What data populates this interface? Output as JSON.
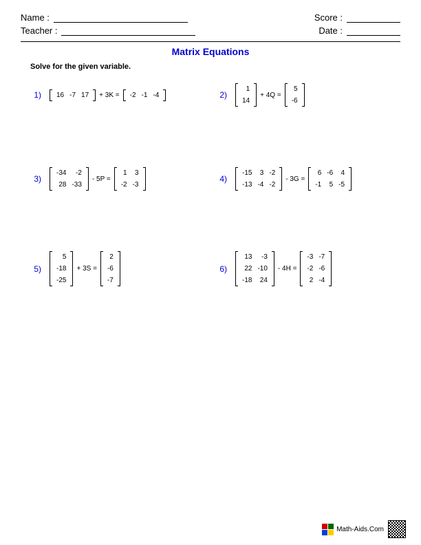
{
  "header": {
    "name_label": "Name :",
    "teacher_label": "Teacher :",
    "score_label": "Score :",
    "date_label": "Date :"
  },
  "title": "Matrix Equations",
  "instruction": "Solve for the given variable.",
  "problems": [
    {
      "num": "1)",
      "left": [
        [
          "16",
          "-7",
          "17"
        ]
      ],
      "op": "+",
      "coef": "3K",
      "eq": "=",
      "right": [
        [
          "-2",
          "-1",
          "-4"
        ]
      ]
    },
    {
      "num": "2)",
      "left": [
        [
          "1"
        ],
        [
          "14"
        ]
      ],
      "op": "+",
      "coef": "4Q",
      "eq": "=",
      "right": [
        [
          "5"
        ],
        [
          "-6"
        ]
      ]
    },
    {
      "num": "3)",
      "left": [
        [
          "-34",
          "-2"
        ],
        [
          "28",
          "-33"
        ]
      ],
      "op": "-",
      "coef": "5P",
      "eq": "=",
      "right": [
        [
          "1",
          "3"
        ],
        [
          "-2",
          "-3"
        ]
      ]
    },
    {
      "num": "4)",
      "left": [
        [
          "-15",
          "3",
          "-2"
        ],
        [
          "-13",
          "-4",
          "-2"
        ]
      ],
      "op": "-",
      "coef": "3G",
      "eq": "=",
      "right": [
        [
          "6",
          "-6",
          "4"
        ],
        [
          "-1",
          "5",
          "-5"
        ]
      ]
    },
    {
      "num": "5)",
      "left": [
        [
          "5"
        ],
        [
          "-18"
        ],
        [
          "-25"
        ]
      ],
      "op": "+",
      "coef": "3S",
      "eq": "=",
      "right": [
        [
          "2"
        ],
        [
          "-6"
        ],
        [
          "-7"
        ]
      ]
    },
    {
      "num": "6)",
      "left": [
        [
          "13",
          "-3"
        ],
        [
          "22",
          "-10"
        ],
        [
          "-18",
          "24"
        ]
      ],
      "op": "-",
      "coef": "4H",
      "eq": "=",
      "right": [
        [
          "-3",
          "-7"
        ],
        [
          "-2",
          "-6"
        ],
        [
          "2",
          "-4"
        ]
      ]
    }
  ],
  "footer": {
    "text": "Math-Aids.Com",
    "icon_colors": [
      "#cc0000",
      "#006600",
      "#0044cc",
      "#ffcc00"
    ]
  },
  "colors": {
    "accent": "#0000cc",
    "text": "#000000",
    "bg": "#ffffff"
  }
}
